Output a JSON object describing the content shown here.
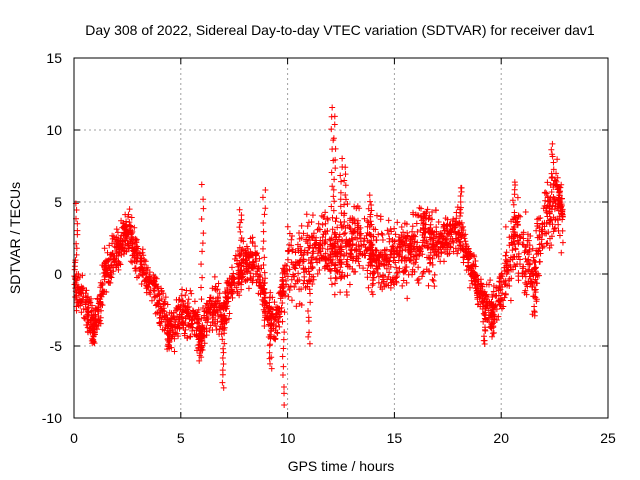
{
  "chart_data": {
    "type": "scatter",
    "title": "Day 308 of 2022, Sidereal Day-to-day VTEC variation (SDTVAR) for receiver dav1",
    "xlabel": "GPS time / hours",
    "ylabel": "SDTVAR / TECUs",
    "xlim": [
      0,
      25
    ],
    "ylim": [
      -10,
      15
    ],
    "xticks": [
      0,
      5,
      10,
      15,
      20,
      25
    ],
    "yticks": [
      -10,
      -5,
      0,
      5,
      10,
      15
    ],
    "xtick_labels": [
      "0",
      "5",
      "10",
      "15",
      "20",
      "25"
    ],
    "ytick_labels": [
      "-10",
      "-5",
      "0",
      "5",
      "10",
      "15"
    ],
    "grid": true,
    "marker": "+",
    "color": "#ff0000",
    "series": [
      {
        "name": "SDTVAR",
        "x_range": [
          0,
          22.9
        ],
        "trend": [
          [
            0.0,
            -0.5
          ],
          [
            0.3,
            -1.5
          ],
          [
            0.6,
            -2.5
          ],
          [
            0.9,
            -3.5
          ],
          [
            1.2,
            -2.0
          ],
          [
            1.5,
            0.5
          ],
          [
            2.0,
            1.5
          ],
          [
            2.5,
            3.0
          ],
          [
            3.0,
            1.0
          ],
          [
            3.5,
            -0.5
          ],
          [
            4.0,
            -2.0
          ],
          [
            4.5,
            -4.0
          ],
          [
            5.0,
            -2.5
          ],
          [
            5.5,
            -3.0
          ],
          [
            6.0,
            -4.0
          ],
          [
            6.5,
            -2.0
          ],
          [
            7.0,
            -3.0
          ],
          [
            7.5,
            0.0
          ],
          [
            8.0,
            0.5
          ],
          [
            8.5,
            1.0
          ],
          [
            9.0,
            -2.5
          ],
          [
            9.5,
            -3.5
          ],
          [
            10.0,
            1.0
          ],
          [
            10.5,
            0.5
          ],
          [
            11.0,
            1.5
          ],
          [
            11.5,
            2.0
          ],
          [
            12.0,
            1.5
          ],
          [
            12.5,
            1.0
          ],
          [
            13.0,
            2.0
          ],
          [
            13.5,
            2.5
          ],
          [
            14.0,
            1.5
          ],
          [
            14.5,
            1.0
          ],
          [
            15.0,
            1.0
          ],
          [
            15.5,
            1.5
          ],
          [
            16.0,
            2.0
          ],
          [
            16.5,
            2.5
          ],
          [
            17.0,
            2.0
          ],
          [
            18.0,
            3.0
          ],
          [
            18.5,
            1.0
          ],
          [
            19.0,
            -1.5
          ],
          [
            19.5,
            -2.5
          ],
          [
            19.8,
            -2.0
          ],
          [
            20.3,
            0.5
          ],
          [
            20.7,
            2.5
          ],
          [
            21.0,
            1.5
          ],
          [
            21.5,
            0.0
          ],
          [
            22.0,
            3.5
          ],
          [
            22.5,
            5.0
          ],
          [
            22.9,
            4.5
          ]
        ],
        "peaks": [
          [
            0.1,
            4.8
          ],
          [
            2.4,
            3.5
          ],
          [
            6.0,
            6.1
          ],
          [
            7.8,
            4.5
          ],
          [
            8.9,
            5.8
          ],
          [
            12.1,
            11.7
          ],
          [
            12.2,
            11.0
          ],
          [
            12.5,
            7.9
          ],
          [
            12.7,
            7.5
          ],
          [
            13.9,
            5.4
          ],
          [
            16.4,
            4.2
          ],
          [
            18.1,
            6.1
          ],
          [
            20.6,
            6.5
          ],
          [
            22.4,
            9.1
          ],
          [
            22.7,
            6.0
          ]
        ],
        "troughs": [
          [
            0.9,
            -4.8
          ],
          [
            4.4,
            -5.3
          ],
          [
            5.9,
            -6.0
          ],
          [
            7.0,
            -7.8
          ],
          [
            9.2,
            -6.5
          ],
          [
            9.8,
            -9.0
          ],
          [
            11.0,
            -4.9
          ],
          [
            14.0,
            -1.1
          ],
          [
            19.2,
            -5.0
          ],
          [
            19.6,
            -4.4
          ],
          [
            21.6,
            -3.0
          ]
        ],
        "points_estimated": 2600
      }
    ]
  }
}
